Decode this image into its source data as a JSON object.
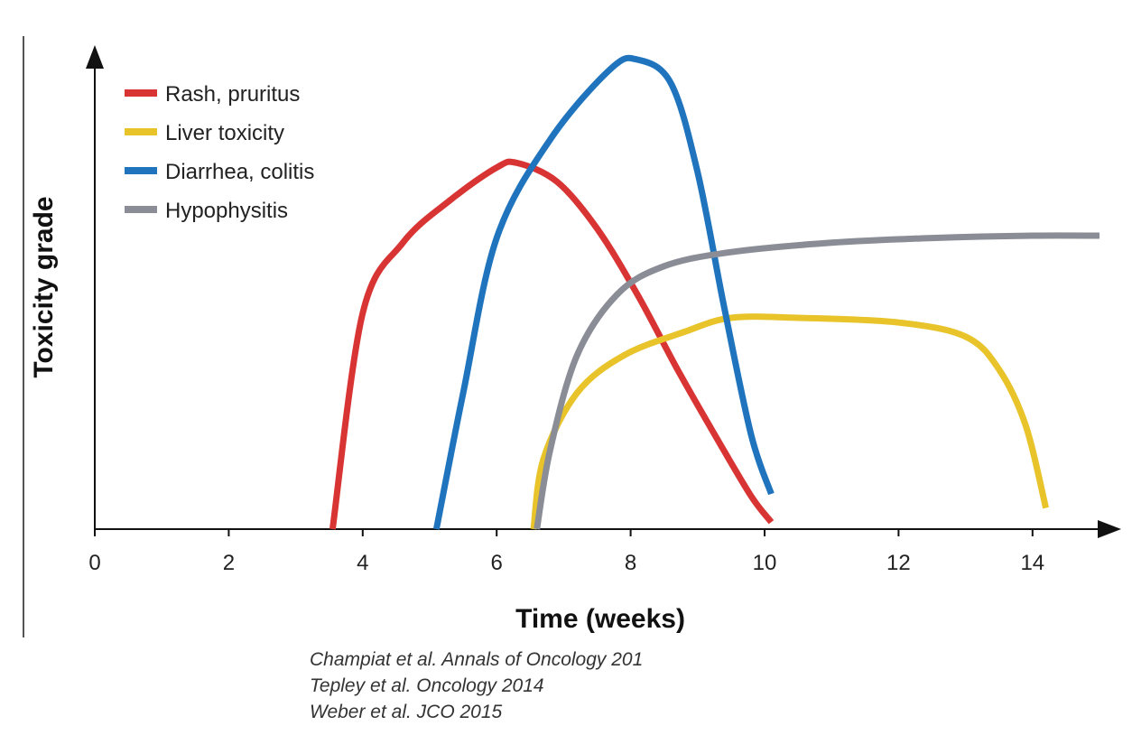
{
  "chart_data": {
    "type": "line",
    "xlabel": "Time (weeks)",
    "ylabel": "Toxicity grade",
    "xlim": [
      0,
      15
    ],
    "ylim": [
      0,
      1
    ],
    "x_ticks": [
      "0",
      "2",
      "4",
      "6",
      "8",
      "10",
      "12",
      "14"
    ],
    "legend_placement": "top-left",
    "grid": false,
    "series": [
      {
        "name": "Rash, pruritus",
        "color": "#d93434",
        "points": [
          [
            3.55,
            0
          ],
          [
            4.0,
            0.46
          ],
          [
            4.6,
            0.61
          ],
          [
            5.3,
            0.7
          ],
          [
            6.0,
            0.77
          ],
          [
            6.3,
            0.78
          ],
          [
            6.9,
            0.74
          ],
          [
            7.5,
            0.64
          ],
          [
            8.1,
            0.5
          ],
          [
            8.7,
            0.34
          ],
          [
            9.3,
            0.19
          ],
          [
            9.8,
            0.07
          ],
          [
            10.1,
            0.015
          ]
        ]
      },
      {
        "name": "Liver toxicity",
        "color": "#e8c42a",
        "points": [
          [
            6.55,
            0
          ],
          [
            6.7,
            0.15
          ],
          [
            7.2,
            0.29
          ],
          [
            7.9,
            0.37
          ],
          [
            8.8,
            0.42
          ],
          [
            9.5,
            0.45
          ],
          [
            10.5,
            0.45
          ],
          [
            12.0,
            0.44
          ],
          [
            13.0,
            0.41
          ],
          [
            13.5,
            0.34
          ],
          [
            13.9,
            0.22
          ],
          [
            14.2,
            0.045
          ]
        ]
      },
      {
        "name": "Diarrhea, colitis",
        "color": "#1f74bd",
        "points": [
          [
            5.1,
            0
          ],
          [
            5.5,
            0.29
          ],
          [
            6.0,
            0.62
          ],
          [
            6.8,
            0.83
          ],
          [
            7.7,
            0.98
          ],
          [
            8.1,
            1.0
          ],
          [
            8.6,
            0.95
          ],
          [
            9.0,
            0.76
          ],
          [
            9.4,
            0.47
          ],
          [
            9.8,
            0.2
          ],
          [
            10.1,
            0.075
          ]
        ]
      },
      {
        "name": "Hypophysitis",
        "color": "#8a8d96",
        "points": [
          [
            6.6,
            0
          ],
          [
            6.8,
            0.17
          ],
          [
            7.2,
            0.37
          ],
          [
            7.8,
            0.5
          ],
          [
            8.5,
            0.56
          ],
          [
            9.5,
            0.59
          ],
          [
            11.0,
            0.61
          ],
          [
            12.5,
            0.62
          ],
          [
            14.0,
            0.625
          ],
          [
            15.0,
            0.625
          ]
        ]
      }
    ]
  },
  "references": [
    "Champiat et al. Annals of Oncology 201",
    "Tepley et al. Oncology 2014",
    "Weber et al. JCO 2015"
  ]
}
